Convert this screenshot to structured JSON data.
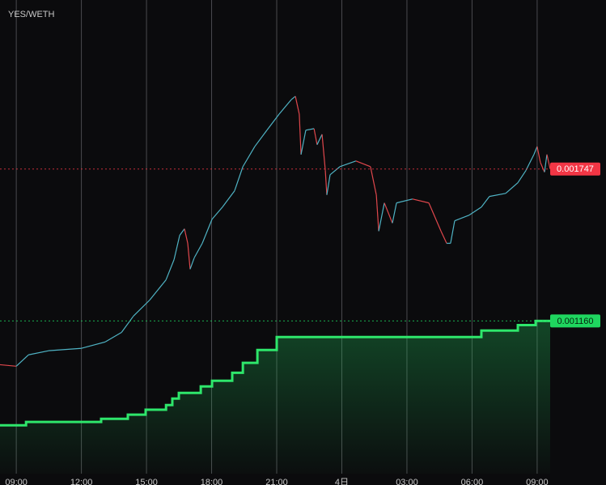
{
  "chart_data": {
    "type": "line",
    "title": "YES/WETH",
    "xlim": [
      -0.75,
      24.6
    ],
    "ylim": [
      0.00057,
      0.0024
    ],
    "xticks": [
      {
        "value": 0,
        "label": "09:00"
      },
      {
        "value": 3,
        "label": "12:00"
      },
      {
        "value": 6,
        "label": "15:00"
      },
      {
        "value": 9,
        "label": "18:00"
      },
      {
        "value": 12,
        "label": "21:00"
      },
      {
        "value": 15,
        "label": "4日"
      },
      {
        "value": 18,
        "label": "03:00"
      },
      {
        "value": 21,
        "label": "06:00"
      },
      {
        "value": 24,
        "label": "09:00"
      }
    ],
    "grid": true,
    "series": [
      {
        "name": "price",
        "up_color": "#4fb3c4",
        "down_color": "#e0474c",
        "x": [
          -0.75,
          0,
          0.56,
          1.49,
          2.98,
          4.1,
          4.85,
          5.4,
          6.15,
          6.9,
          7.27,
          7.53,
          7.75,
          7.9,
          8.01,
          8.2,
          8.57,
          9.02,
          9.5,
          10.06,
          10.44,
          10.99,
          11.55,
          12.11,
          12.67,
          12.86,
          13.04,
          13.12,
          13.34,
          13.72,
          13.86,
          14.09,
          14.24,
          14.31,
          14.46,
          14.91,
          15.65,
          16.32,
          16.59,
          16.7,
          16.96,
          17.33,
          17.52,
          18.26,
          19.01,
          19.57,
          19.83,
          20.01,
          20.2,
          20.87,
          21.43,
          21.8,
          22.55,
          23.11,
          23.48,
          23.85,
          24,
          24.15,
          24.34,
          24.45,
          24.6
        ],
        "values": [
          0.000991,
          0.000985,
          0.001029,
          0.001045,
          0.001054,
          0.001079,
          0.001116,
          0.001179,
          0.001241,
          0.001319,
          0.001397,
          0.001491,
          0.001516,
          0.00146,
          0.00136,
          0.001404,
          0.00146,
          0.001553,
          0.0016,
          0.001663,
          0.001756,
          0.001834,
          0.001897,
          0.001959,
          0.002015,
          0.002028,
          0.001959,
          0.001803,
          0.001897,
          0.001903,
          0.001841,
          0.001881,
          0.001741,
          0.001647,
          0.001725,
          0.001756,
          0.001778,
          0.001756,
          0.001647,
          0.001507,
          0.001616,
          0.001538,
          0.001616,
          0.001631,
          0.001616,
          0.001507,
          0.00146,
          0.00146,
          0.001547,
          0.001569,
          0.0016,
          0.001641,
          0.001653,
          0.001694,
          0.001741,
          0.001803,
          0.001834,
          0.001772,
          0.001735,
          0.001803,
          0.001747
        ]
      },
      {
        "name": "step",
        "color": "#2ee66b",
        "style": "step",
        "x": [
          -0.75,
          0.45,
          3.91,
          5.14,
          5.96,
          6.9,
          7.19,
          7.49,
          8.5,
          9.02,
          9.95,
          10.44,
          11.11,
          12,
          21.43,
          23.11,
          23.93,
          24.6
        ],
        "values": [
          0.000757,
          0.00077,
          0.000782,
          0.000798,
          0.000817,
          0.000835,
          0.00086,
          0.000882,
          0.000907,
          0.000929,
          0.00096,
          0.000998,
          0.001048,
          0.001098,
          0.001123,
          0.001144,
          0.00116,
          0.00116
        ]
      }
    ],
    "price_lines": [
      {
        "value": 0.001747,
        "label": "0.001747",
        "color": "#f23645"
      },
      {
        "value": 0.00116,
        "label": "0.001160",
        "color": "#1fd65f"
      }
    ]
  }
}
